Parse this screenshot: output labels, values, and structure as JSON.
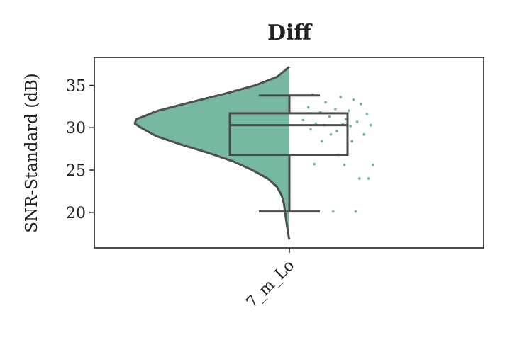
{
  "chart_data": {
    "type": "raincloud",
    "title": "Diff",
    "ylabel": "SNR-Standard (dB)",
    "xlabel": "",
    "categories": [
      "7_m_Lo"
    ],
    "ylim": [
      15.8,
      38.3
    ],
    "yticks": [
      20,
      25,
      30,
      35
    ],
    "grid": false,
    "color": "#76b8a0",
    "box": {
      "whisker_low": 20.1,
      "q1": 26.8,
      "median": 30.3,
      "q3": 31.7,
      "whisker_high": 33.8
    },
    "violin_range": [
      16.8,
      37.2
    ],
    "violin_profile": [
      [
        37.2,
        0.0
      ],
      [
        36.0,
        0.08
      ],
      [
        35.0,
        0.22
      ],
      [
        34.0,
        0.42
      ],
      [
        33.0,
        0.64
      ],
      [
        32.0,
        0.85
      ],
      [
        31.0,
        0.99
      ],
      [
        30.5,
        1.0
      ],
      [
        30.0,
        0.96
      ],
      [
        29.0,
        0.86
      ],
      [
        28.0,
        0.7
      ],
      [
        27.0,
        0.52
      ],
      [
        26.0,
        0.36
      ],
      [
        25.0,
        0.24
      ],
      [
        24.0,
        0.14
      ],
      [
        23.0,
        0.08
      ],
      [
        22.0,
        0.05
      ],
      [
        21.0,
        0.035
      ],
      [
        20.0,
        0.028
      ],
      [
        19.0,
        0.02
      ],
      [
        18.0,
        0.012
      ],
      [
        17.0,
        0.003
      ],
      [
        16.8,
        0.0
      ]
    ],
    "points": [
      33.9,
      33.6,
      33.3,
      33.0,
      32.8,
      32.4,
      32.2,
      32.0,
      31.8,
      31.6,
      31.3,
      31.0,
      30.9,
      30.7,
      30.5,
      30.4,
      30.3,
      30.3,
      30.2,
      29.8,
      29.6,
      29.2,
      29.2,
      28.4,
      28.4,
      26.8,
      25.7,
      25.6,
      25.6,
      24.0,
      24.0,
      20.1,
      20.1
    ]
  }
}
